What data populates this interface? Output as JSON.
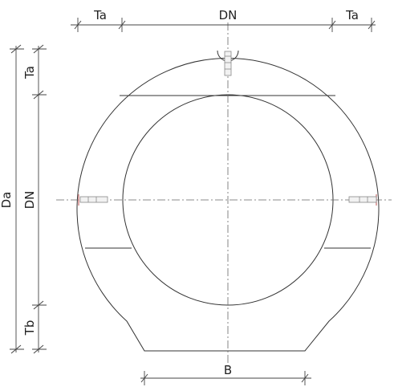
{
  "labels": {
    "ta_left": "Ta",
    "dn_top": "DN",
    "ta_right": "Ta",
    "ta_vertical": "Ta",
    "dn_vertical": "DN",
    "da_vertical": "Da",
    "tb_vertical": "Tb",
    "b_bottom": "B"
  },
  "colors": {
    "line": "#333333",
    "centerline": "#666666",
    "bolt_accent": "#c97070"
  },
  "icons": {
    "top_bolt": "hanger-bolt-icon",
    "side_bolts": "screw-icon"
  }
}
